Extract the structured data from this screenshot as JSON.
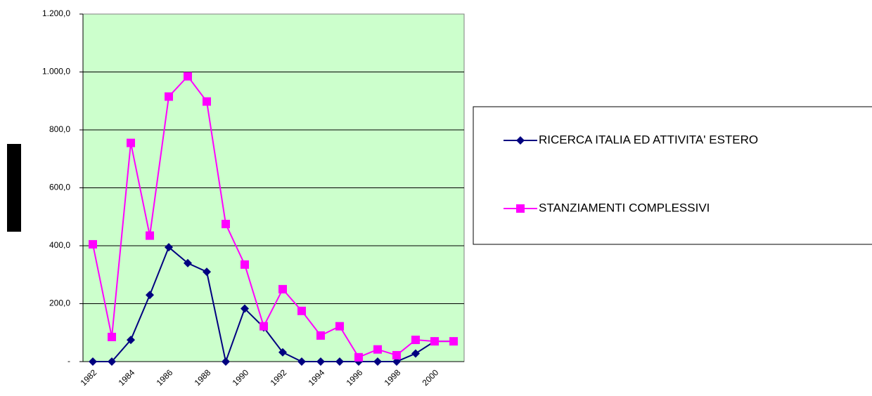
{
  "chart_data": {
    "type": "line",
    "categories": [
      "1982",
      null,
      "1984",
      null,
      "1986",
      null,
      "1988",
      null,
      "1990",
      null,
      "1992",
      null,
      "1994",
      null,
      "1996",
      null,
      "1998",
      null,
      "2000",
      null
    ],
    "series": [
      {
        "name": "RICERCA ITALIA ED ATTIVITA' ESTERO",
        "color": "#000080",
        "marker": "diamond",
        "values": [
          0,
          0,
          75,
          230,
          395,
          340,
          310,
          0,
          183,
          118,
          32,
          0,
          0,
          0,
          0,
          0,
          0,
          28,
          70,
          70
        ]
      },
      {
        "name": "STANZIAMENTI COMPLESSIVI",
        "color": "#ff00ff",
        "marker": "square",
        "values": [
          405,
          85,
          755,
          435,
          915,
          985,
          898,
          475,
          335,
          122,
          250,
          175,
          90,
          122,
          15,
          42,
          22,
          75,
          70,
          70
        ]
      }
    ],
    "ylim": [
      0,
      1200
    ],
    "yticks": [
      {
        "value": 0,
        "label": "-"
      },
      {
        "value": 200,
        "label": "200,0"
      },
      {
        "value": 400,
        "label": "400,0"
      },
      {
        "value": 600,
        "label": "600,0"
      },
      {
        "value": 800,
        "label": "800,0"
      },
      {
        "value": 1000,
        "label": "1.000,0"
      },
      {
        "value": 1200,
        "label": "1.200,0"
      }
    ],
    "grid": true,
    "legend": "right",
    "plot_background": "#ccffcc"
  }
}
